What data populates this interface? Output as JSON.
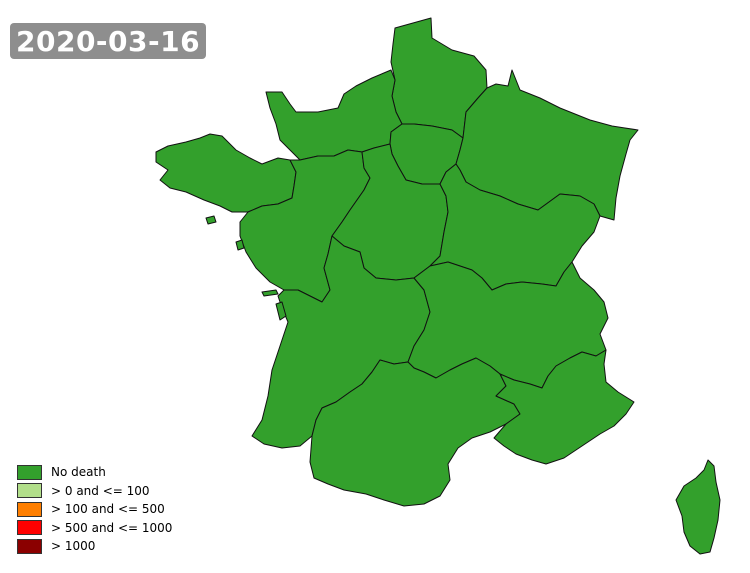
{
  "date": "2020-03-16",
  "map": {
    "fill_color": "#33a02c",
    "regions": [
      {
        "name": "Hauts-de-France",
        "category": "No death"
      },
      {
        "name": "Normandie",
        "category": "No death"
      },
      {
        "name": "Île-de-France",
        "category": "No death"
      },
      {
        "name": "Grand Est",
        "category": "No death"
      },
      {
        "name": "Bretagne",
        "category": "No death"
      },
      {
        "name": "Pays de la Loire",
        "category": "No death"
      },
      {
        "name": "Centre-Val de Loire",
        "category": "No death"
      },
      {
        "name": "Bourgogne-Franche-Comté",
        "category": "No death"
      },
      {
        "name": "Nouvelle-Aquitaine",
        "category": "No death"
      },
      {
        "name": "Auvergne-Rhône-Alpes",
        "category": "No death"
      },
      {
        "name": "Occitanie",
        "category": "No death"
      },
      {
        "name": "Provence-Alpes-Côte d'Azur",
        "category": "No death"
      },
      {
        "name": "Corse",
        "category": "No death"
      }
    ]
  },
  "legend": {
    "items": [
      {
        "label": "No death",
        "color": "#33a02c"
      },
      {
        "label": "> 0 and <= 100",
        "color": "#b2df8a"
      },
      {
        "label": "> 100 and <= 500",
        "color": "#ff7f00"
      },
      {
        "label": "> 500 and <= 1000",
        "color": "#ff0000"
      },
      {
        "label": "> 1000",
        "color": "#8b0000"
      }
    ]
  }
}
